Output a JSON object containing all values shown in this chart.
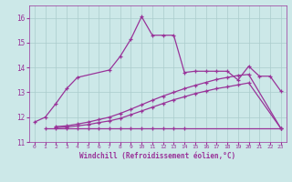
{
  "bg_color": "#cce8e8",
  "grid_color": "#aacccc",
  "line_color": "#993399",
  "xlabel": "Windchill (Refroidissement éolien,°C)",
  "xlim": [
    -0.5,
    23.5
  ],
  "ylim": [
    11.0,
    16.5
  ],
  "yticks": [
    11,
    12,
    13,
    14,
    15,
    16
  ],
  "xticks": [
    0,
    1,
    2,
    3,
    4,
    5,
    6,
    7,
    8,
    9,
    10,
    11,
    12,
    13,
    14,
    15,
    16,
    17,
    18,
    19,
    20,
    21,
    22,
    23
  ],
  "series1_x": [
    0,
    1,
    2,
    3,
    4,
    7,
    8,
    9,
    10,
    11,
    12,
    13,
    14,
    15,
    16,
    17,
    18,
    19,
    20,
    21,
    22,
    23
  ],
  "series1_y": [
    11.8,
    12.0,
    12.55,
    13.15,
    13.6,
    13.9,
    14.45,
    15.15,
    16.05,
    15.3,
    15.3,
    15.3,
    13.8,
    13.85,
    13.85,
    13.85,
    13.85,
    13.5,
    14.05,
    13.65,
    13.65,
    13.05
  ],
  "series2_x": [
    1,
    2,
    3,
    4,
    5,
    6,
    7,
    8,
    9,
    10,
    11,
    12,
    13,
    14,
    23
  ],
  "series2_y": [
    11.55,
    11.55,
    11.55,
    11.55,
    11.55,
    11.55,
    11.55,
    11.55,
    11.55,
    11.55,
    11.55,
    11.55,
    11.55,
    11.55,
    11.55
  ],
  "series3_x": [
    2,
    3,
    4,
    5,
    6,
    7,
    8,
    9,
    10,
    11,
    12,
    13,
    14,
    15,
    16,
    17,
    18,
    19,
    20,
    23
  ],
  "series3_y": [
    11.58,
    11.6,
    11.65,
    11.7,
    11.78,
    11.85,
    11.95,
    12.1,
    12.25,
    12.4,
    12.55,
    12.7,
    12.82,
    12.95,
    13.05,
    13.15,
    13.22,
    13.3,
    13.38,
    11.55
  ],
  "series4_x": [
    2,
    3,
    4,
    5,
    6,
    7,
    8,
    9,
    10,
    11,
    12,
    13,
    14,
    15,
    16,
    17,
    18,
    19,
    20,
    23
  ],
  "series4_y": [
    11.62,
    11.65,
    11.72,
    11.8,
    11.9,
    12.0,
    12.15,
    12.32,
    12.5,
    12.68,
    12.85,
    13.0,
    13.15,
    13.28,
    13.4,
    13.52,
    13.6,
    13.68,
    13.72,
    11.55
  ]
}
